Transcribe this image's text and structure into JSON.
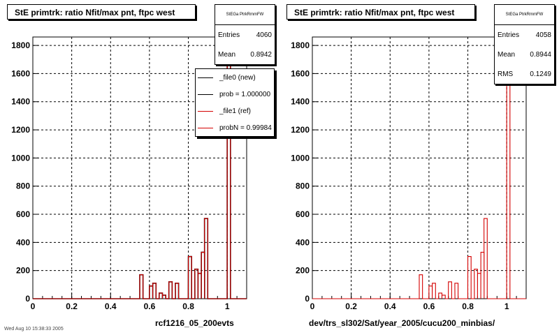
{
  "chart_data": [
    {
      "type": "histogram",
      "title": "StE primtrk: ratio Nfit/max pnt, ftpc west",
      "xlabel": "rcf1216_05_200evts",
      "xlim": [
        0,
        1.1
      ],
      "ylim": [
        0,
        1860
      ],
      "xticks": [
        "0",
        "0.2",
        "0.4",
        "0.6",
        "0.8",
        "1"
      ],
      "yticks": [
        "0",
        "200",
        "400",
        "600",
        "800",
        "1000",
        "1200",
        "1400",
        "1600",
        "1800"
      ],
      "grid": true,
      "stats": {
        "name": "StEGa PtrkRmmFW",
        "rows": [
          {
            "label": "Entries",
            "value": "4060"
          },
          {
            "label": "Mean",
            "value": "0.8942"
          }
        ]
      },
      "legend": {
        "placement": "top-right",
        "entries": [
          {
            "label": "_file0 (new)",
            "color": "#000000"
          },
          {
            "label": "prob = 1.000000",
            "color": "#000000"
          },
          {
            "label": "_file1 (ref)",
            "color": "#d40000"
          },
          {
            "label": "probN = 0.99984",
            "color": "#d40000"
          }
        ]
      },
      "series": [
        {
          "name": "_file0 (new)",
          "color": "#000000"
        },
        {
          "name": "_file1 (ref)",
          "color": "#d40000"
        }
      ],
      "bins": {
        "x": [
          0.55,
          0.567,
          0.583,
          0.6,
          0.617,
          0.633,
          0.65,
          0.667,
          0.683,
          0.7,
          0.717,
          0.733,
          0.75,
          0.767,
          0.783,
          0.8,
          0.817,
          0.833,
          0.85,
          0.867,
          0.883,
          0.9,
          0.917,
          0.933,
          0.95,
          0.967,
          0.983,
          1.0
        ],
        "values": [
          170,
          0,
          0,
          90,
          110,
          0,
          40,
          25,
          0,
          120,
          0,
          110,
          0,
          0,
          0,
          300,
          0,
          210,
          180,
          330,
          570,
          0,
          0,
          0,
          0,
          0,
          0,
          1820
        ]
      }
    },
    {
      "type": "histogram",
      "title": "StE primtrk: ratio Nfit/max pnt, ftpc west",
      "xlabel": "dev/trs_sl302/Sat/year_2005/cucu200_minbias/",
      "xlim": [
        0,
        1.1
      ],
      "ylim": [
        0,
        1860
      ],
      "xticks": [
        "0",
        "0.2",
        "0.4",
        "0.6",
        "0.8",
        "1"
      ],
      "yticks": [
        "0",
        "200",
        "400",
        "600",
        "800",
        "1000",
        "1200",
        "1400",
        "1600",
        "1800"
      ],
      "grid": true,
      "stats": {
        "name": "StEGa PtrkRmmFW",
        "rows": [
          {
            "label": "Entries",
            "value": "4058"
          },
          {
            "label": "Mean",
            "value": "0.8944"
          },
          {
            "label": "RMS",
            "value": "0.1249"
          }
        ]
      },
      "series": [
        {
          "name": "",
          "color": "#d40000"
        }
      ],
      "bins": {
        "x": [
          0.55,
          0.567,
          0.583,
          0.6,
          0.617,
          0.633,
          0.65,
          0.667,
          0.683,
          0.7,
          0.717,
          0.733,
          0.75,
          0.767,
          0.783,
          0.8,
          0.817,
          0.833,
          0.85,
          0.867,
          0.883,
          0.9,
          0.917,
          0.933,
          0.95,
          0.967,
          0.983,
          1.0
        ],
        "values": [
          170,
          0,
          0,
          90,
          110,
          0,
          40,
          25,
          0,
          120,
          0,
          110,
          0,
          0,
          0,
          300,
          0,
          210,
          180,
          330,
          570,
          0,
          0,
          0,
          0,
          0,
          0,
          1820
        ]
      }
    }
  ],
  "footer": {
    "text": "Wed Aug 10 15:38:33 2005"
  }
}
